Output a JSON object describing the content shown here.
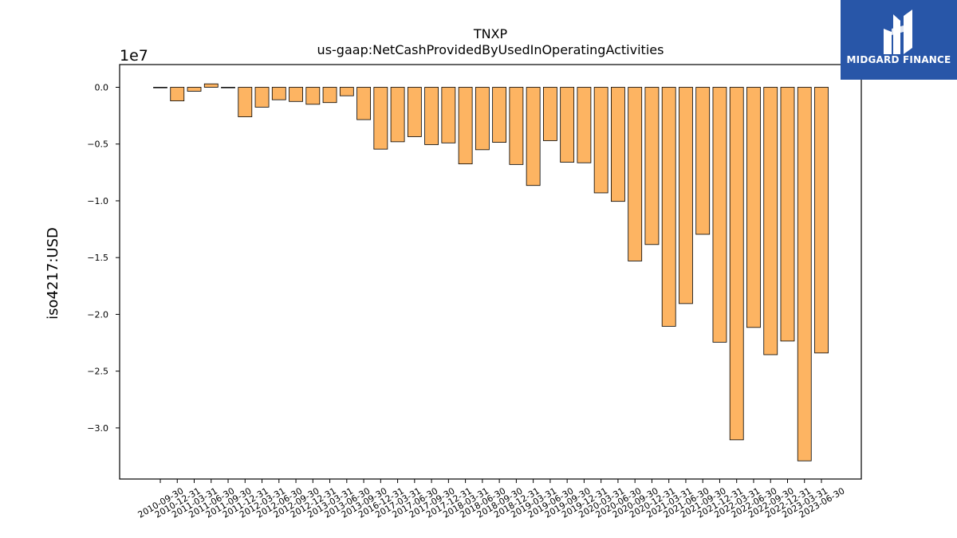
{
  "chart_data": {
    "type": "bar",
    "title": "TNXP",
    "subtitle": "us-gaap:NetCashProvidedByUsedInOperatingActivities",
    "ylabel": "iso4217:USD",
    "xlabel": "",
    "y_offset_label": "1e7",
    "ylim": [
      -3.45,
      0.2
    ],
    "y_ticks": [
      0.0,
      -0.5,
      -1.0,
      -1.5,
      -2.0,
      -2.5,
      -3.0
    ],
    "y_tick_labels": [
      "0.0",
      "−0.5",
      "−1.0",
      "−1.5",
      "−2.0",
      "−2.5",
      "−3.0"
    ],
    "grid": false,
    "bar_color": "#fdb462",
    "edge_color": "#000000",
    "categories": [
      "2010-09-30",
      "2010-12-31",
      "2011-03-31",
      "2011-06-30",
      "2011-09-30",
      "2011-12-31",
      "2012-03-31",
      "2012-06-30",
      "2012-09-30",
      "2012-12-31",
      "2013-03-31",
      "2013-06-30",
      "2013-09-30",
      "2016-12-31",
      "2017-03-31",
      "2017-06-30",
      "2017-09-30",
      "2017-12-31",
      "2018-03-31",
      "2018-06-30",
      "2018-09-30",
      "2018-12-31",
      "2019-03-31",
      "2019-06-30",
      "2019-09-30",
      "2019-12-31",
      "2020-03-31",
      "2020-06-30",
      "2020-09-30",
      "2020-12-31",
      "2021-03-31",
      "2021-06-30",
      "2021-09-30",
      "2021-12-31",
      "2022-03-31",
      "2022-06-30",
      "2022-09-30",
      "2022-12-31",
      "2023-03-31",
      "2023-06-30"
    ],
    "values": [
      -0.005,
      -0.12,
      -0.035,
      0.03,
      -0.005,
      -0.26,
      -0.175,
      -0.11,
      -0.125,
      -0.15,
      -0.135,
      -0.075,
      -0.285,
      -0.545,
      -0.48,
      -0.435,
      -0.505,
      -0.49,
      -0.675,
      -0.55,
      -0.485,
      -0.68,
      -0.865,
      -0.47,
      -0.66,
      -0.665,
      -0.93,
      -1.005,
      -1.53,
      -1.385,
      -2.105,
      -1.905,
      -1.295,
      -2.245,
      -3.105,
      -2.115,
      -2.355,
      -2.235,
      -3.29,
      -2.34
    ]
  },
  "logo": {
    "text": "MIDGARD FINANCE",
    "icon": "m-logo-icon",
    "background": "#2856a8"
  }
}
